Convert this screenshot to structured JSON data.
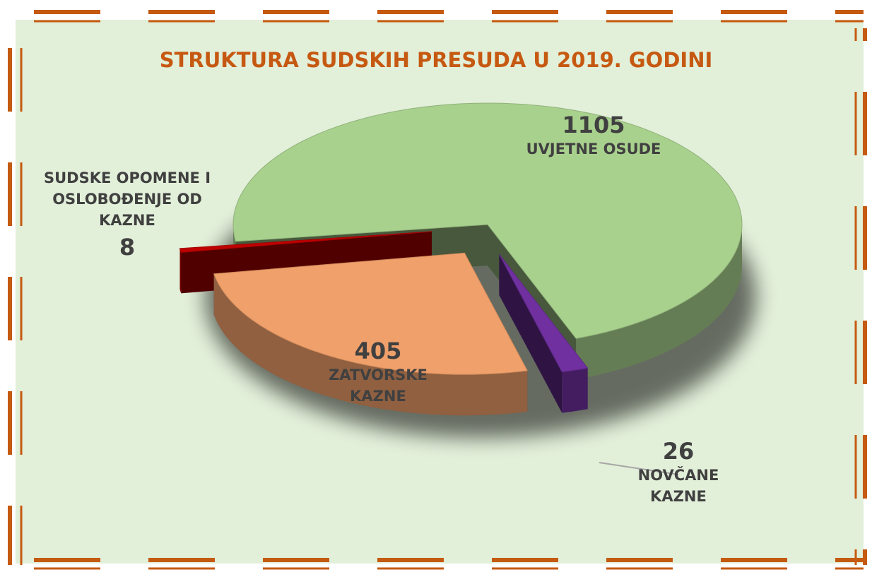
{
  "chart_data": {
    "type": "pie3d",
    "title": "STRUKTURA SUDSKIH PRESUDA U 2019. GODINI",
    "categories": [
      "UVJETNE OSUDE",
      "NOVČANE KAZNE",
      "ZATVORSKE KAZNE",
      "SUDSKE OPOMENE I OSLOBOĐENJE OD KAZNE"
    ],
    "values": [
      1105,
      26,
      405,
      8
    ],
    "colors": [
      "#a9d18e",
      "#7030a0",
      "#f0a06a",
      "#c00000"
    ]
  }
}
